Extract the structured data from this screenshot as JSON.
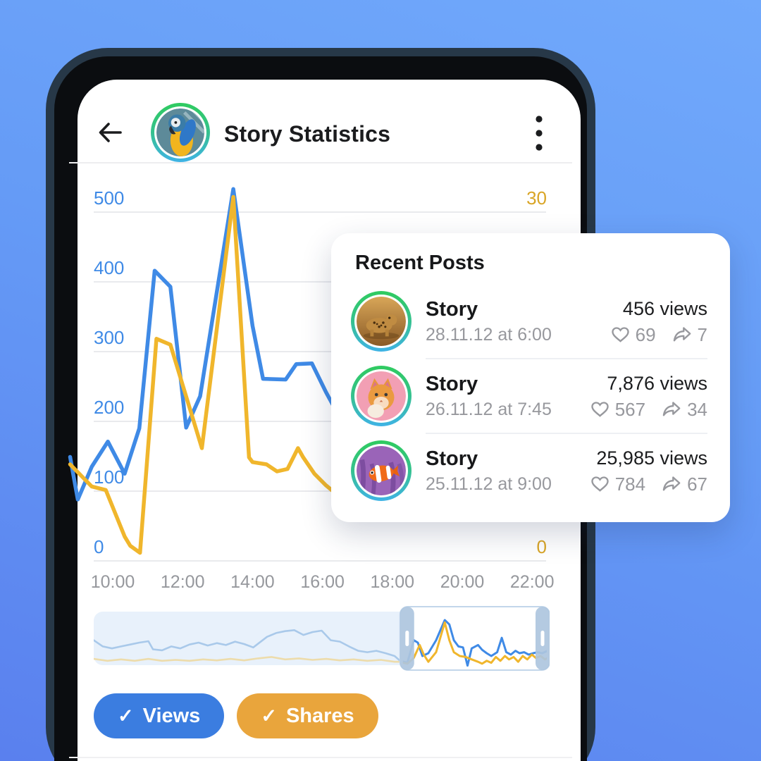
{
  "header": {
    "title": "Story Statistics",
    "back_icon": "back-arrow",
    "menu_icon": "kebab-menu",
    "avatar": "parrot"
  },
  "colors": {
    "views_blue": "#3f8ae6",
    "shares_yellow": "#f0b62c",
    "axis_blue": "#3f8ae6",
    "axis_yellow": "#d9a526",
    "tick_gray": "#96989d",
    "grid": "#e9eaed",
    "views_button": "#3b7de0",
    "shares_button": "#e9a53c",
    "views_faded": "#a9c9ea",
    "shares_faded": "#eddcab",
    "minimap_bg": "#e8f1fb",
    "selection_border": "#c2d6ea",
    "handle": "#aec6de",
    "story_ring_top": "#2fcb5f",
    "story_ring_bottom": "#3fb3e6"
  },
  "chart_data": {
    "main": {
      "type": "line",
      "title": "Story Statistics",
      "grid": true,
      "legend_position": "bottom",
      "x_axis": {
        "labels": [
          "10:00",
          "12:00",
          "14:00",
          "16:00",
          "18:00",
          "20:00",
          "22:00"
        ]
      },
      "left_axis": {
        "ticks": [
          500,
          400,
          300,
          200,
          100,
          0
        ],
        "max": 500,
        "series": "Views"
      },
      "right_axis": {
        "ticks": [
          30,
          0
        ],
        "max": 30,
        "series": "Shares"
      },
      "series": [
        {
          "name": "Views",
          "axis": "left",
          "color_key": "views_blue",
          "points": [
            [
              8.78,
              149
            ],
            [
              9.0,
              88
            ],
            [
              9.4,
              135
            ],
            [
              9.86,
              171
            ],
            [
              10.34,
              125
            ],
            [
              10.76,
              190
            ],
            [
              11.2,
              416
            ],
            [
              11.65,
              393
            ],
            [
              12.1,
              191
            ],
            [
              12.5,
              236
            ],
            [
              13.45,
              533
            ],
            [
              14.0,
              337
            ],
            [
              14.3,
              261
            ],
            [
              14.95,
              260
            ],
            [
              15.25,
              282
            ],
            [
              15.7,
              283
            ],
            [
              16.1,
              242
            ],
            [
              16.5,
              205
            ],
            [
              16.9,
              178
            ],
            [
              17.3,
              192
            ],
            [
              17.7,
              158
            ],
            [
              18.1,
              150
            ],
            [
              18.5,
              188
            ],
            [
              18.9,
              165
            ],
            [
              19.3,
              235
            ],
            [
              19.7,
              292
            ],
            [
              20.1,
              205
            ],
            [
              20.5,
              176
            ],
            [
              20.9,
              198
            ],
            [
              21.3,
              162
            ],
            [
              21.7,
              188
            ],
            [
              22.1,
              178
            ],
            [
              22.5,
              212
            ],
            [
              22.75,
              235
            ]
          ]
        },
        {
          "name": "Shares",
          "axis": "right",
          "color_key": "shares_yellow",
          "points": [
            [
              8.78,
              8.3
            ],
            [
              9.4,
              6.4
            ],
            [
              9.8,
              6.1
            ],
            [
              10.34,
              2.1
            ],
            [
              10.5,
              1.3
            ],
            [
              10.78,
              0.7
            ],
            [
              11.25,
              19.1
            ],
            [
              11.65,
              18.6
            ],
            [
              12.55,
              9.7
            ],
            [
              13.45,
              31.3
            ],
            [
              13.9,
              8.9
            ],
            [
              14.0,
              8.5
            ],
            [
              14.4,
              8.3
            ],
            [
              14.7,
              7.7
            ],
            [
              15.0,
              7.9
            ],
            [
              15.3,
              9.7
            ],
            [
              15.45,
              8.9
            ],
            [
              15.77,
              7.5
            ],
            [
              16.1,
              6.5
            ],
            [
              16.5,
              5.5
            ],
            [
              16.9,
              4.6
            ],
            [
              17.3,
              5.3
            ],
            [
              17.7,
              4.3
            ],
            [
              18.1,
              4.9
            ],
            [
              18.5,
              4.1
            ],
            [
              18.9,
              5.1
            ],
            [
              19.3,
              4.6
            ],
            [
              19.7,
              6.6
            ],
            [
              20.1,
              5.6
            ],
            [
              20.5,
              7.6
            ],
            [
              20.9,
              6.1
            ],
            [
              21.3,
              7.9
            ],
            [
              21.7,
              7.1
            ],
            [
              22.1,
              8.3
            ],
            [
              22.5,
              7.7
            ],
            [
              22.75,
              8.6
            ]
          ]
        }
      ]
    },
    "minimap": {
      "type": "line",
      "role": "scrubber",
      "selection": [
        0.672,
        1.0
      ],
      "series": [
        {
          "name": "Views",
          "color_key": "views_blue",
          "faded_key": "views_faded",
          "points_norm": [
            [
              0,
              0.55
            ],
            [
              0.02,
              0.42
            ],
            [
              0.04,
              0.38
            ],
            [
              0.06,
              0.42
            ],
            [
              0.08,
              0.46
            ],
            [
              0.1,
              0.5
            ],
            [
              0.12,
              0.53
            ],
            [
              0.13,
              0.36
            ],
            [
              0.15,
              0.34
            ],
            [
              0.17,
              0.42
            ],
            [
              0.19,
              0.38
            ],
            [
              0.21,
              0.46
            ],
            [
              0.23,
              0.5
            ],
            [
              0.25,
              0.44
            ],
            [
              0.27,
              0.49
            ],
            [
              0.29,
              0.45
            ],
            [
              0.31,
              0.52
            ],
            [
              0.33,
              0.47
            ],
            [
              0.35,
              0.4
            ],
            [
              0.38,
              0.62
            ],
            [
              0.4,
              0.7
            ],
            [
              0.42,
              0.74
            ],
            [
              0.44,
              0.76
            ],
            [
              0.46,
              0.66
            ],
            [
              0.48,
              0.72
            ],
            [
              0.5,
              0.75
            ],
            [
              0.52,
              0.55
            ],
            [
              0.54,
              0.52
            ],
            [
              0.56,
              0.42
            ],
            [
              0.58,
              0.33
            ],
            [
              0.6,
              0.3
            ],
            [
              0.62,
              0.33
            ],
            [
              0.64,
              0.28
            ],
            [
              0.66,
              0.22
            ],
            [
              0.672,
              0.12
            ],
            [
              0.688,
              0.08
            ],
            [
              0.702,
              0.55
            ],
            [
              0.711,
              0.5
            ],
            [
              0.721,
              0.22
            ],
            [
              0.734,
              0.28
            ],
            [
              0.751,
              0.55
            ],
            [
              0.77,
              0.97
            ],
            [
              0.78,
              0.88
            ],
            [
              0.79,
              0.55
            ],
            [
              0.8,
              0.42
            ],
            [
              0.81,
              0.4
            ],
            [
              0.82,
              0.02
            ],
            [
              0.829,
              0.38
            ],
            [
              0.843,
              0.45
            ],
            [
              0.852,
              0.35
            ],
            [
              0.862,
              0.28
            ],
            [
              0.872,
              0.22
            ],
            [
              0.885,
              0.3
            ],
            [
              0.895,
              0.6
            ],
            [
              0.905,
              0.3
            ],
            [
              0.915,
              0.25
            ],
            [
              0.925,
              0.33
            ],
            [
              0.934,
              0.28
            ],
            [
              0.944,
              0.3
            ],
            [
              0.954,
              0.25
            ],
            [
              0.964,
              0.28
            ],
            [
              0.974,
              0.3
            ],
            [
              0.984,
              0.28
            ],
            [
              1,
              0.35
            ]
          ]
        },
        {
          "name": "Shares",
          "color_key": "shares_yellow",
          "faded_key": "shares_faded",
          "points_norm": [
            [
              0,
              0.16
            ],
            [
              0.03,
              0.12
            ],
            [
              0.06,
              0.15
            ],
            [
              0.09,
              0.12
            ],
            [
              0.12,
              0.16
            ],
            [
              0.15,
              0.12
            ],
            [
              0.18,
              0.14
            ],
            [
              0.21,
              0.12
            ],
            [
              0.24,
              0.15
            ],
            [
              0.27,
              0.13
            ],
            [
              0.3,
              0.16
            ],
            [
              0.33,
              0.13
            ],
            [
              0.36,
              0.17
            ],
            [
              0.39,
              0.2
            ],
            [
              0.42,
              0.15
            ],
            [
              0.45,
              0.17
            ],
            [
              0.48,
              0.14
            ],
            [
              0.51,
              0.16
            ],
            [
              0.54,
              0.13
            ],
            [
              0.57,
              0.15
            ],
            [
              0.6,
              0.12
            ],
            [
              0.63,
              0.14
            ],
            [
              0.66,
              0.1
            ],
            [
              0.672,
              0.1
            ],
            [
              0.688,
              0.06
            ],
            [
              0.702,
              0.18
            ],
            [
              0.715,
              0.45
            ],
            [
              0.724,
              0.25
            ],
            [
              0.734,
              0.1
            ],
            [
              0.751,
              0.3
            ],
            [
              0.77,
              0.92
            ],
            [
              0.78,
              0.55
            ],
            [
              0.79,
              0.3
            ],
            [
              0.803,
              0.22
            ],
            [
              0.816,
              0.2
            ],
            [
              0.829,
              0.15
            ],
            [
              0.843,
              0.1
            ],
            [
              0.852,
              0.06
            ],
            [
              0.862,
              0.12
            ],
            [
              0.872,
              0.08
            ],
            [
              0.882,
              0.2
            ],
            [
              0.892,
              0.12
            ],
            [
              0.902,
              0.22
            ],
            [
              0.911,
              0.15
            ],
            [
              0.921,
              0.2
            ],
            [
              0.931,
              0.1
            ],
            [
              0.941,
              0.22
            ],
            [
              0.951,
              0.15
            ],
            [
              0.961,
              0.25
            ],
            [
              0.97,
              0.18
            ],
            [
              0.98,
              0.22
            ],
            [
              0.99,
              0.15
            ],
            [
              1,
              0.2
            ]
          ]
        }
      ]
    }
  },
  "recent_posts": {
    "title": "Recent Posts",
    "rows": [
      {
        "avatar": "cheetah",
        "title": "Story",
        "date": "28.11.12 at 6:00",
        "views": "456 views",
        "likes": "69",
        "shares": "7"
      },
      {
        "avatar": "cat",
        "title": "Story",
        "date": "26.11.12 at 7:45",
        "views": "7,876 views",
        "likes": "567",
        "shares": "34"
      },
      {
        "avatar": "clownfish",
        "title": "Story",
        "date": "25.11.12 at 9:00",
        "views": "25,985 views",
        "likes": "784",
        "shares": "67"
      }
    ]
  },
  "legend": {
    "check_glyph": "✓",
    "buttons": [
      {
        "label": "Views",
        "checked": true
      },
      {
        "label": "Shares",
        "checked": true
      }
    ]
  }
}
